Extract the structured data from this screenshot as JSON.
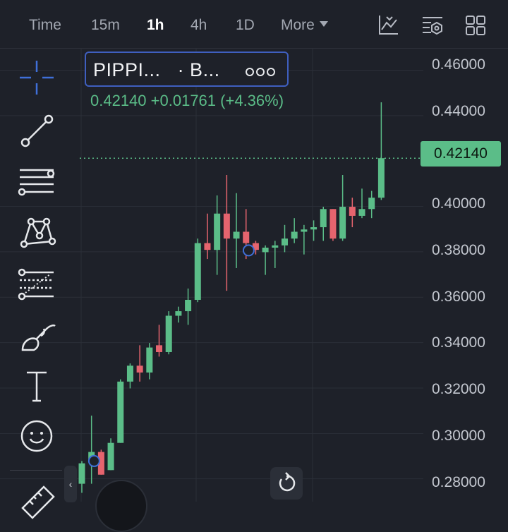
{
  "timeframes": {
    "time": "Time",
    "m15": "15m",
    "h1": "1h",
    "h4": "4h",
    "d1": "1D",
    "more": "More"
  },
  "legend": {
    "symbol": "PIPPI...",
    "exchange": "· B..."
  },
  "quote": {
    "price": "0.42140",
    "change": "+0.01761",
    "percent": "(+4.36%)"
  },
  "price_label": "0.42140",
  "colors": {
    "up": "#5bbd88",
    "down": "#e5646e",
    "accent": "#3f6fd8",
    "background": "#1e2129"
  },
  "icons": [
    "indicators-icon",
    "template-icon",
    "layout-icon",
    "crosshair-icon",
    "trend-line-icon",
    "parallel-channel-icon",
    "pattern-icon",
    "fib-retracement-icon",
    "brush-icon",
    "text-icon",
    "emoji-icon",
    "ruler-icon",
    "reset-icon",
    "chevron-left-icon"
  ],
  "chart_data": {
    "type": "candlestick",
    "yticks": [
      "0.46000",
      "0.44000",
      "0.40000",
      "0.38000",
      "0.36000",
      "0.34000",
      "0.32000",
      "0.30000",
      "0.28000"
    ],
    "ylim": [
      0.2785,
      0.4628
    ],
    "last_price": 0.4214,
    "candles": [
      {
        "o": 0.278,
        "h": 0.288,
        "l": 0.274,
        "c": 0.287
      },
      {
        "o": 0.288,
        "h": 0.308,
        "l": 0.278,
        "c": 0.292
      },
      {
        "o": 0.292,
        "h": 0.293,
        "l": 0.282,
        "c": 0.282
      },
      {
        "o": 0.284,
        "h": 0.298,
        "l": 0.284,
        "c": 0.296
      },
      {
        "o": 0.296,
        "h": 0.324,
        "l": 0.296,
        "c": 0.323
      },
      {
        "o": 0.323,
        "h": 0.331,
        "l": 0.32,
        "c": 0.33
      },
      {
        "o": 0.33,
        "h": 0.339,
        "l": 0.323,
        "c": 0.327
      },
      {
        "o": 0.327,
        "h": 0.34,
        "l": 0.324,
        "c": 0.338
      },
      {
        "o": 0.339,
        "h": 0.348,
        "l": 0.334,
        "c": 0.336
      },
      {
        "o": 0.336,
        "h": 0.354,
        "l": 0.335,
        "c": 0.352
      },
      {
        "o": 0.352,
        "h": 0.356,
        "l": 0.349,
        "c": 0.354
      },
      {
        "o": 0.354,
        "h": 0.364,
        "l": 0.348,
        "c": 0.359
      },
      {
        "o": 0.359,
        "h": 0.386,
        "l": 0.358,
        "c": 0.384
      },
      {
        "o": 0.384,
        "h": 0.397,
        "l": 0.377,
        "c": 0.381
      },
      {
        "o": 0.381,
        "h": 0.405,
        "l": 0.37,
        "c": 0.397
      },
      {
        "o": 0.397,
        "h": 0.414,
        "l": 0.363,
        "c": 0.386
      },
      {
        "o": 0.386,
        "h": 0.406,
        "l": 0.373,
        "c": 0.389
      },
      {
        "o": 0.389,
        "h": 0.399,
        "l": 0.377,
        "c": 0.384
      },
      {
        "o": 0.384,
        "h": 0.385,
        "l": 0.379,
        "c": 0.381
      },
      {
        "o": 0.38,
        "h": 0.383,
        "l": 0.37,
        "c": 0.382
      },
      {
        "o": 0.382,
        "h": 0.385,
        "l": 0.373,
        "c": 0.383
      },
      {
        "o": 0.383,
        "h": 0.392,
        "l": 0.38,
        "c": 0.386
      },
      {
        "o": 0.386,
        "h": 0.395,
        "l": 0.384,
        "c": 0.389
      },
      {
        "o": 0.389,
        "h": 0.392,
        "l": 0.379,
        "c": 0.39
      },
      {
        "o": 0.39,
        "h": 0.394,
        "l": 0.385,
        "c": 0.391
      },
      {
        "o": 0.391,
        "h": 0.4,
        "l": 0.385,
        "c": 0.399
      },
      {
        "o": 0.399,
        "h": 0.399,
        "l": 0.385,
        "c": 0.386
      },
      {
        "o": 0.386,
        "h": 0.414,
        "l": 0.385,
        "c": 0.4
      },
      {
        "o": 0.4,
        "h": 0.404,
        "l": 0.391,
        "c": 0.396
      },
      {
        "o": 0.396,
        "h": 0.408,
        "l": 0.395,
        "c": 0.399
      },
      {
        "o": 0.399,
        "h": 0.407,
        "l": 0.395,
        "c": 0.404
      },
      {
        "o": 0.404,
        "h": 0.446,
        "l": 0.403,
        "c": 0.4214
      }
    ]
  }
}
